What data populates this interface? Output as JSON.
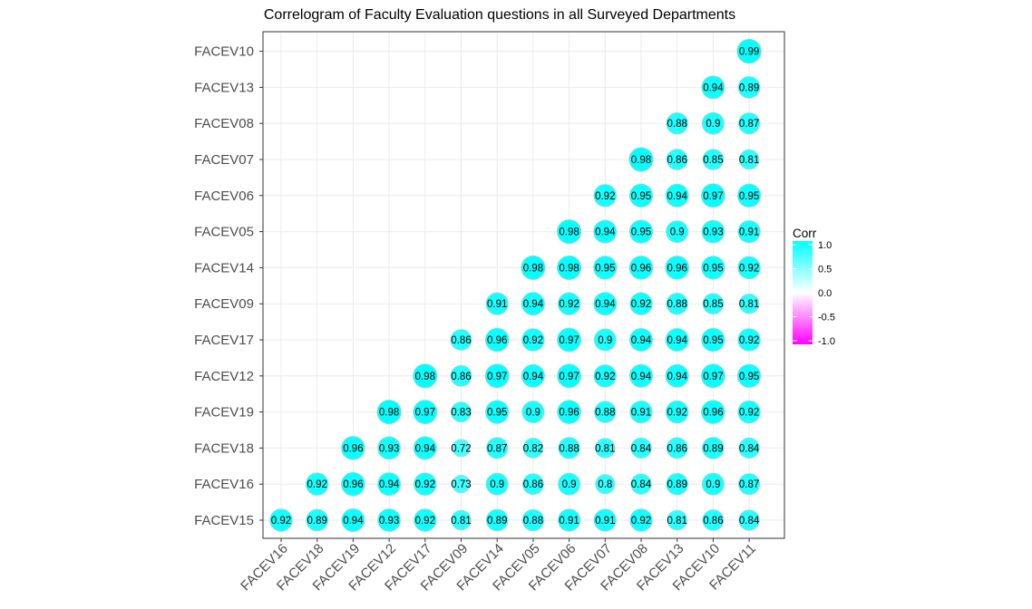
{
  "chart_data": {
    "type": "heatmap",
    "title": "Correlogram of Faculty Evaluation questions in all Surveyed Departments",
    "x_labels": [
      "FACEV16",
      "FACEV18",
      "FACEV19",
      "FACEV12",
      "FACEV17",
      "FACEV09",
      "FACEV14",
      "FACEV05",
      "FACEV06",
      "FACEV07",
      "FACEV08",
      "FACEV13",
      "FACEV10",
      "FACEV11"
    ],
    "y_labels": [
      "FACEV15",
      "FACEV16",
      "FACEV18",
      "FACEV19",
      "FACEV12",
      "FACEV17",
      "FACEV09",
      "FACEV14",
      "FACEV05",
      "FACEV06",
      "FACEV07",
      "FACEV08",
      "FACEV13",
      "FACEV10"
    ],
    "rows": [
      {
        "y": "FACEV15",
        "values": [
          0.92,
          0.89,
          0.94,
          0.93,
          0.92,
          0.81,
          0.89,
          0.88,
          0.91,
          0.91,
          0.92,
          0.81,
          0.86,
          0.84
        ]
      },
      {
        "y": "FACEV16",
        "values": [
          null,
          0.92,
          0.96,
          0.94,
          0.92,
          0.73,
          0.9,
          0.86,
          0.9,
          0.8,
          0.84,
          0.89,
          0.9,
          0.87
        ]
      },
      {
        "y": "FACEV18",
        "values": [
          null,
          null,
          0.96,
          0.93,
          0.94,
          0.72,
          0.87,
          0.82,
          0.88,
          0.81,
          0.84,
          0.86,
          0.89,
          0.84
        ]
      },
      {
        "y": "FACEV19",
        "values": [
          null,
          null,
          null,
          0.98,
          0.97,
          0.83,
          0.95,
          0.9,
          0.96,
          0.88,
          0.91,
          0.92,
          0.96,
          0.92
        ]
      },
      {
        "y": "FACEV12",
        "values": [
          null,
          null,
          null,
          null,
          0.98,
          0.86,
          0.97,
          0.94,
          0.97,
          0.92,
          0.94,
          0.94,
          0.97,
          0.95
        ]
      },
      {
        "y": "FACEV17",
        "values": [
          null,
          null,
          null,
          null,
          null,
          0.86,
          0.96,
          0.92,
          0.97,
          0.9,
          0.94,
          0.94,
          0.95,
          0.92
        ]
      },
      {
        "y": "FACEV09",
        "values": [
          null,
          null,
          null,
          null,
          null,
          null,
          0.91,
          0.94,
          0.92,
          0.94,
          0.92,
          0.88,
          0.85,
          0.81
        ]
      },
      {
        "y": "FACEV14",
        "values": [
          null,
          null,
          null,
          null,
          null,
          null,
          null,
          0.98,
          0.98,
          0.95,
          0.96,
          0.96,
          0.95,
          0.92
        ]
      },
      {
        "y": "FACEV05",
        "values": [
          null,
          null,
          null,
          null,
          null,
          null,
          null,
          null,
          0.98,
          0.94,
          0.95,
          0.9,
          0.93,
          0.91
        ]
      },
      {
        "y": "FACEV06",
        "values": [
          null,
          null,
          null,
          null,
          null,
          null,
          null,
          null,
          null,
          0.92,
          0.95,
          0.94,
          0.97,
          0.95
        ]
      },
      {
        "y": "FACEV07",
        "values": [
          null,
          null,
          null,
          null,
          null,
          null,
          null,
          null,
          null,
          null,
          0.98,
          0.86,
          0.85,
          0.81
        ]
      },
      {
        "y": "FACEV08",
        "values": [
          null,
          null,
          null,
          null,
          null,
          null,
          null,
          null,
          null,
          null,
          null,
          0.88,
          0.9,
          0.87
        ]
      },
      {
        "y": "FACEV13",
        "values": [
          null,
          null,
          null,
          null,
          null,
          null,
          null,
          null,
          null,
          null,
          null,
          null,
          0.94,
          0.89
        ]
      },
      {
        "y": "FACEV10",
        "values": [
          null,
          null,
          null,
          null,
          null,
          null,
          null,
          null,
          null,
          null,
          null,
          null,
          null,
          0.99
        ]
      }
    ],
    "legend": {
      "title": "Corr",
      "ticks": [
        "1.0",
        "0.5",
        "0.0",
        "-0.5",
        "-1.0"
      ],
      "placement": "right",
      "color_high": "#00ffff",
      "color_mid": "#ffffff",
      "color_low": "#ff00ff"
    },
    "grid": true
  }
}
